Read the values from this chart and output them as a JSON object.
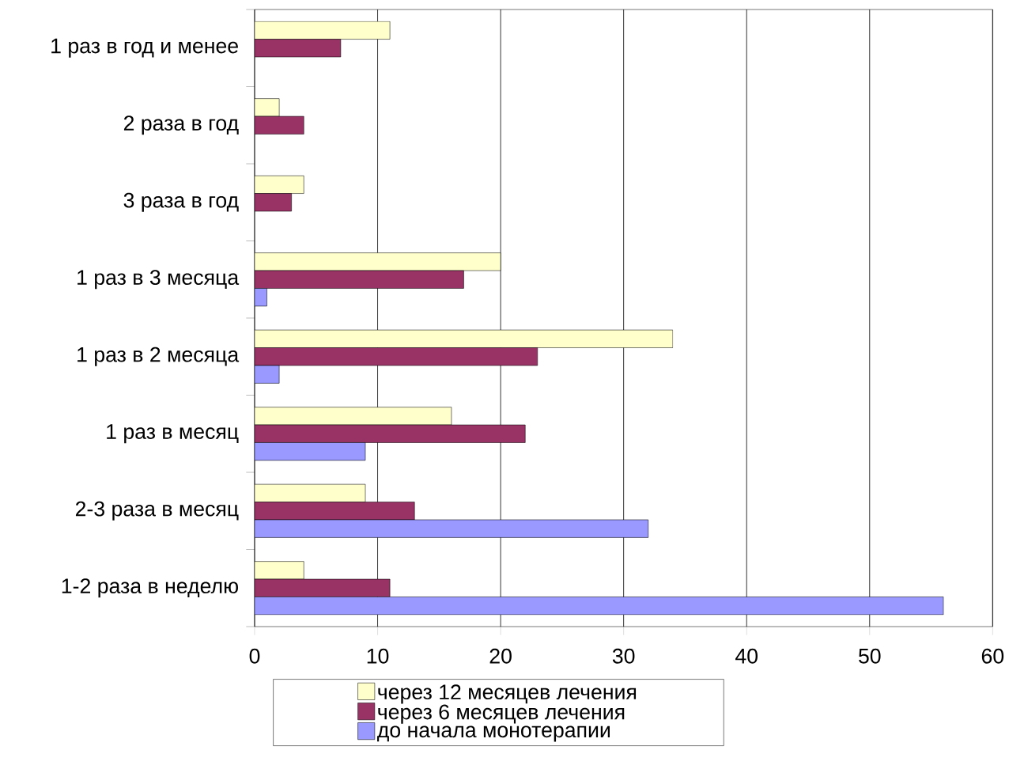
{
  "chart_data": {
    "type": "bar",
    "orientation": "horizontal",
    "categories": [
      "1 раз в год и менее",
      "2 раза в год",
      "3 раза в год",
      "1 раз в 3 месяца",
      "1 раз в 2 месяца",
      "1 раз в месяц",
      "2-3 раза в месяц",
      "1-2 раза в неделю"
    ],
    "series": [
      {
        "name": "через 12 месяцев лечения",
        "color": "#ffffcc",
        "values": [
          11,
          2,
          4,
          20,
          34,
          16,
          9,
          4
        ]
      },
      {
        "name": "через 6 месяцев лечения",
        "color": "#993366",
        "values": [
          7,
          4,
          3,
          17,
          23,
          22,
          13,
          11
        ]
      },
      {
        "name": "до начала монотерапии",
        "color": "#9999ff",
        "values": [
          null,
          null,
          null,
          1,
          2,
          9,
          32,
          56
        ]
      }
    ],
    "xlim": [
      0,
      60
    ],
    "xticks": [
      0,
      10,
      20,
      30,
      40,
      50,
      60
    ],
    "grid": "x",
    "legend": "bottom"
  }
}
